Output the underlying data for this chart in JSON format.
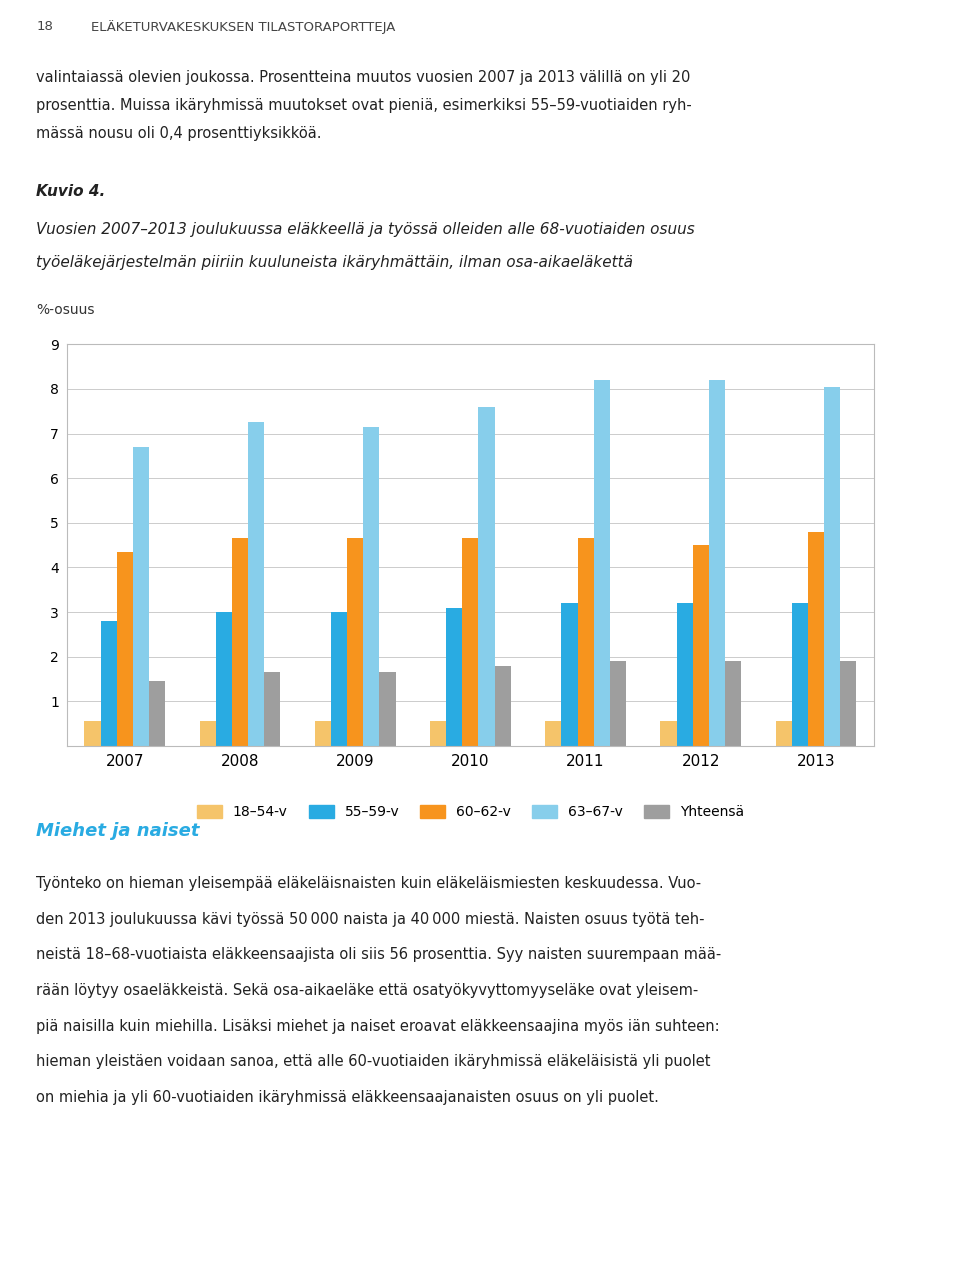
{
  "years": [
    2007,
    2008,
    2009,
    2010,
    2011,
    2012,
    2013
  ],
  "series": {
    "18-54-v": [
      0.55,
      0.55,
      0.55,
      0.55,
      0.55,
      0.55,
      0.55
    ],
    "55-59-v": [
      2.8,
      3.0,
      3.0,
      3.1,
      3.2,
      3.2,
      3.2
    ],
    "60-62-v": [
      4.35,
      4.65,
      4.65,
      4.65,
      4.65,
      4.5,
      4.8
    ],
    "63-67-v": [
      6.7,
      7.25,
      7.15,
      7.6,
      8.2,
      8.2,
      8.05
    ],
    "Yhteensa": [
      1.45,
      1.65,
      1.65,
      1.8,
      1.9,
      1.9,
      1.9
    ]
  },
  "colors": {
    "18-54-v": "#F5C46A",
    "55-59-v": "#29ABE2",
    "60-62-v": "#F7941D",
    "63-67-v": "#87CEEB",
    "Yhteensa": "#9E9E9E"
  },
  "ylabel": "%-osuus",
  "ylim": [
    0,
    9
  ],
  "yticks": [
    1,
    2,
    3,
    4,
    5,
    6,
    7,
    8,
    9
  ],
  "background_color": "#ffffff",
  "grid_color": "#cccccc",
  "page_header_num": "18",
  "page_header_text": "ELÄKETURVAKESKUKSEN TILASTORAPORTTEJA",
  "intro_text1": "valintaiassä olevien joukossa. Prosentteina muutos vuosien 2007 ja 2013 välillä on yli 20",
  "intro_text2": "prosenttia. Muissa ikäryhmissä muutokset ovat pieniä, esimerkiksi 55–59-vuotiaiden ryh-",
  "intro_text3": "mässä nousu oli 0,4 prosenttiyksikköä.",
  "kuvio_label": "Kuvio 4.",
  "title_line1": "Vuosien 2007–2013 joulukuussa eläkkeellä ja työssä olleiden alle 68-vuotiaiden osuus",
  "title_line2": "työeläkejärjestelmän piiriin kuuluneista ikäryhmättäin, ilman osa-aikaeläkettä",
  "legend_labels": [
    "18–54-v",
    "55–59-v",
    "60–62-v",
    "63–67-v",
    "Yhteensä"
  ],
  "bar_width": 0.14,
  "section_title": "Miehet ja naiset",
  "body_lines": [
    "Työnteko on hieman yleisempää eläkeläisnaisten kuin eläkeläismiesten keskuudessa. Vuo-",
    "den 2013 joulukuussa kävi työssä 50 000 naista ja 40 000 miestä. Naisten osuus työtä teh-",
    "neistä 18–68-vuotiaista eläkkeensaajista oli siis 56 prosenttia. Syy naisten suurempaan mää-",
    "rään löytyy osaeläkkeistä. Sekä osa-aikaeläke että osatyökyvyttomyyseläke ovat yleisem-",
    "piä naisilla kuin miehilla. Lisäksi miehet ja naiset eroavat eläkkeensaajina myös iän suhteen:",
    "hieman yleistäen voidaan sanoa, että alle 60-vuotiaiden ikäryhmissä eläkeläisistä yli puolet",
    "on miehia ja yli 60-vuotiaiden ikäryhmissä eläkkeensaajanaisten osuus on yli puolet."
  ]
}
